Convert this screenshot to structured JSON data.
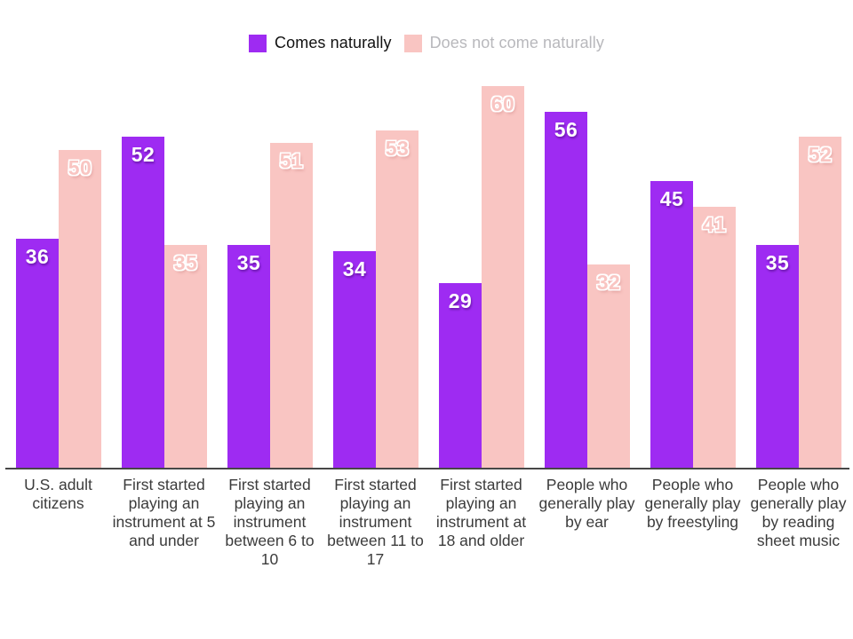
{
  "chart_data": {
    "type": "bar",
    "categories": [
      "U.S. adult citizens",
      "First started playing an instrument at 5 and under",
      "First started playing an instrument between 6 to 10",
      "First started playing an instrument between 11 to 17",
      "First started playing an instrument at 18 and older",
      "People who generally play by ear",
      "People who generally play by freestyling",
      "People who generally play by reading sheet music"
    ],
    "series": [
      {
        "name": "Comes naturally",
        "color": "#9e2bf2",
        "values": [
          36,
          52,
          35,
          34,
          29,
          56,
          45,
          35
        ]
      },
      {
        "name": "Does not come naturally",
        "color": "#f9c5c2",
        "values": [
          50,
          35,
          51,
          53,
          60,
          32,
          41,
          52
        ]
      }
    ],
    "ylim": [
      0,
      60
    ],
    "grid": false,
    "legend_position": "top",
    "value_label_position": "inside-top"
  },
  "legend": {
    "items": [
      {
        "label": "Comes naturally",
        "swatch_color": "#9e2bf2",
        "text_color": "#121212"
      },
      {
        "label": "Does not come naturally",
        "swatch_color": "#f9c5c2",
        "text_color": "#b8b8bc"
      }
    ]
  },
  "colors": {
    "axis_line": "#474747",
    "category_label": "#3b3b3b",
    "background": "#ffffff"
  }
}
